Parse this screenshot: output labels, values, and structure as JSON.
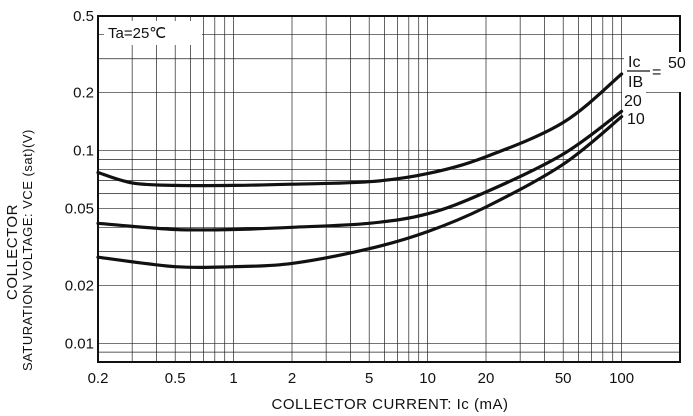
{
  "chart_data": {
    "type": "line",
    "annotation": "Ta=25℃",
    "xlabel": "COLLECTOR CURRENT: Ic (mA)",
    "ylabel_line1": "COLLECTOR",
    "ylabel_line2": "SATURATION VOLTAGE: VCE (sat)(V)",
    "x_scale": "log",
    "y_scale": "log",
    "xlim": [
      0.2,
      200
    ],
    "ylim": [
      0.008,
      0.5
    ],
    "x_tick_labels": [
      "0.2",
      "0.5",
      "1",
      "2",
      "5",
      "10",
      "20",
      "50",
      "100"
    ],
    "y_tick_labels": [
      "0.5",
      "0.2",
      "0.1",
      "0.05",
      "0.02",
      "0.01"
    ],
    "grid": true,
    "ratio_label_top": "Ic",
    "ratio_label_bottom": "IB",
    "series": [
      {
        "name": "50",
        "x": [
          0.2,
          0.3,
          0.5,
          1,
          2,
          5,
          10,
          20,
          50,
          100
        ],
        "y": [
          0.077,
          0.068,
          0.066,
          0.066,
          0.067,
          0.069,
          0.076,
          0.093,
          0.14,
          0.25
        ]
      },
      {
        "name": "20",
        "x": [
          0.2,
          0.5,
          1,
          2,
          5,
          10,
          20,
          50,
          100
        ],
        "y": [
          0.042,
          0.039,
          0.039,
          0.04,
          0.042,
          0.047,
          0.061,
          0.096,
          0.16
        ]
      },
      {
        "name": "10",
        "x": [
          0.2,
          0.5,
          1,
          2,
          5,
          10,
          20,
          50,
          100
        ],
        "y": [
          0.028,
          0.025,
          0.025,
          0.026,
          0.031,
          0.038,
          0.051,
          0.085,
          0.15
        ]
      }
    ]
  }
}
